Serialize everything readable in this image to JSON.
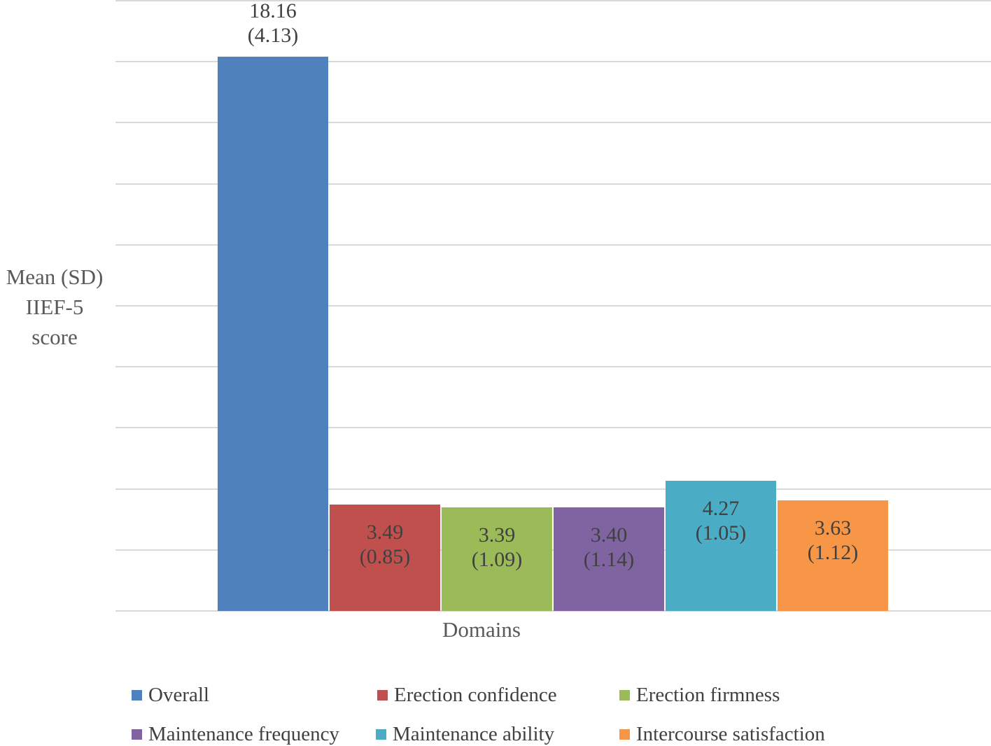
{
  "chart_data": {
    "type": "bar",
    "title": "",
    "xlabel": "Domains",
    "ylabel": "Mean (SD) IIEF-5 score",
    "ylabel_lines": [
      "Mean (SD)",
      "IIEF-5",
      "score"
    ],
    "ylim": [
      0,
      20
    ],
    "y_gridline_step": 2,
    "y_axis_tick_labels_shown": false,
    "grid": "horizontal",
    "legend_position": "bottom",
    "data_label_format": "mean newline (sd)",
    "series": [
      {
        "name": "Overall",
        "mean": 18.16,
        "sd": 4.13,
        "color": "#4F81BD",
        "label_position": "outside-top"
      },
      {
        "name": "Erection confidence",
        "mean": 3.49,
        "sd": 0.85,
        "color": "#C0504D",
        "label_position": "inside-top"
      },
      {
        "name": "Erection firmness",
        "mean": 3.39,
        "sd": 1.09,
        "color": "#9BBB59",
        "label_position": "inside-top"
      },
      {
        "name": "Maintenance frequency",
        "mean": 3.4,
        "sd": 1.14,
        "color": "#8064A2",
        "label_position": "inside-top"
      },
      {
        "name": "Maintenance ability",
        "mean": 4.27,
        "sd": 1.05,
        "color": "#4BACC6",
        "label_position": "inside-top"
      },
      {
        "name": "Intercourse satisfaction",
        "mean": 3.63,
        "sd": 1.12,
        "color": "#F79646",
        "label_position": "inside-top"
      }
    ],
    "colors": {
      "gridline": "#D9D9D9",
      "data_label_text": "#404040",
      "axis_title_text": "#595959",
      "legend_text": "#404040",
      "background": "#FFFFFF"
    }
  }
}
